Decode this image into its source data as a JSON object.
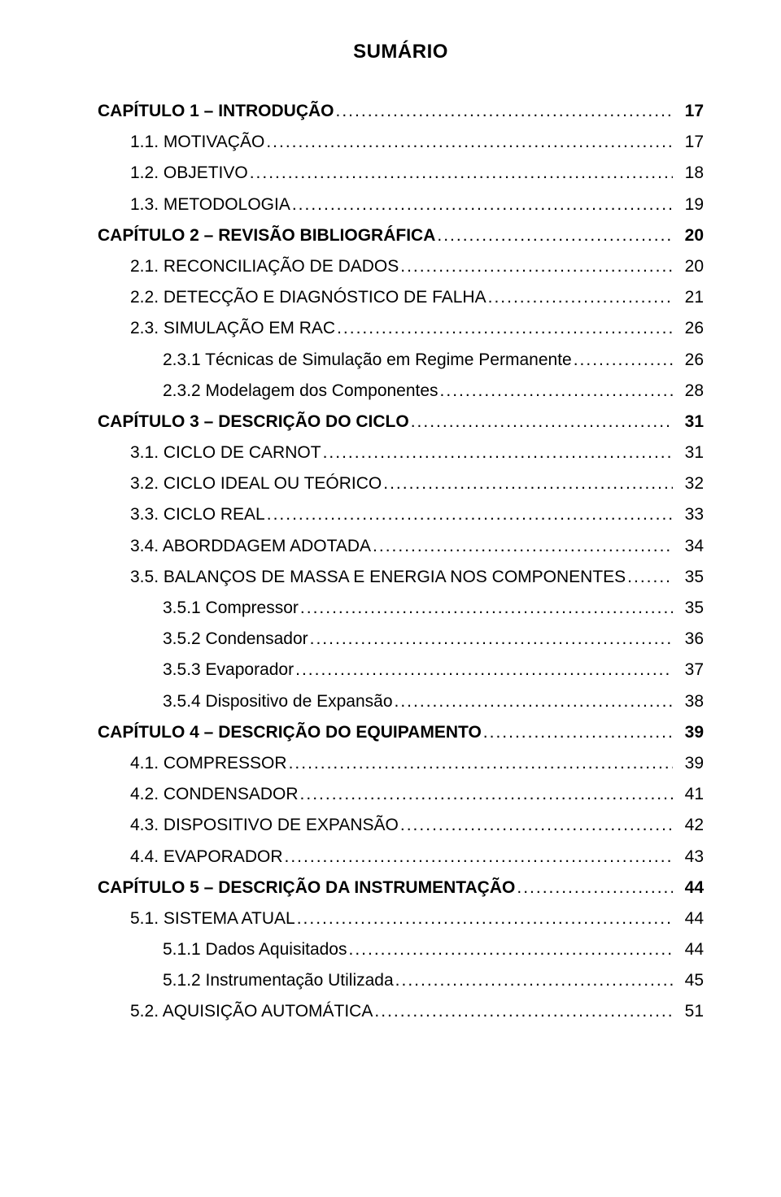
{
  "title": "SUMÁRIO",
  "font": {
    "family": "Arial",
    "title_size": 24,
    "row_size": 21
  },
  "colors": {
    "text": "#000000",
    "background": "#ffffff"
  },
  "entries": [
    {
      "label": "CAPÍTULO 1 – INTRODUÇÃO",
      "page": "17",
      "level": 0,
      "bold": true
    },
    {
      "label": "1.1. MOTIVAÇÃO",
      "page": "17",
      "level": 1,
      "bold": false
    },
    {
      "label": "1.2. OBJETIVO",
      "page": "18",
      "level": 1,
      "bold": false
    },
    {
      "label": "1.3. METODOLOGIA",
      "page": "19",
      "level": 1,
      "bold": false
    },
    {
      "label": "CAPÍTULO 2 – REVISÃO BIBLIOGRÁFICA",
      "page": "20",
      "level": 0,
      "bold": true
    },
    {
      "label": "2.1. RECONCILIAÇÃO DE DADOS",
      "page": "20",
      "level": 1,
      "bold": false
    },
    {
      "label": "2.2. DETECÇÃO E DIAGNÓSTICO DE FALHA",
      "page": "21",
      "level": 1,
      "bold": false
    },
    {
      "label": "2.3. SIMULAÇÃO EM RAC",
      "page": "26",
      "level": 1,
      "bold": false
    },
    {
      "label": "2.3.1  Técnicas de Simulação em Regime Permanente",
      "page": "26",
      "level": 2,
      "bold": false
    },
    {
      "label": "2.3.2  Modelagem dos Componentes",
      "page": "28",
      "level": 2,
      "bold": false
    },
    {
      "label": "CAPÍTULO 3 – DESCRIÇÃO DO CICLO",
      "page": "31",
      "level": 0,
      "bold": true
    },
    {
      "label": "3.1. CICLO DE CARNOT",
      "page": "31",
      "level": 1,
      "bold": false
    },
    {
      "label": "3.2. CICLO IDEAL OU TEÓRICO",
      "page": "32",
      "level": 1,
      "bold": false
    },
    {
      "label": "3.3. CICLO REAL",
      "page": "33",
      "level": 1,
      "bold": false
    },
    {
      "label": "3.4. ABORDDAGEM ADOTADA",
      "page": "34",
      "level": 1,
      "bold": false
    },
    {
      "label": "3.5. BALANÇOS DE MASSA E ENERGIA NOS COMPONENTES",
      "page": "35",
      "level": 1,
      "bold": false
    },
    {
      "label": "3.5.1  Compressor",
      "page": "35",
      "level": 2,
      "bold": false
    },
    {
      "label": "3.5.2  Condensador",
      "page": "36",
      "level": 2,
      "bold": false
    },
    {
      "label": "3.5.3  Evaporador",
      "page": "37",
      "level": 2,
      "bold": false
    },
    {
      "label": "3.5.4  Dispositivo de Expansão",
      "page": "38",
      "level": 2,
      "bold": false
    },
    {
      "label": "CAPÍTULO 4 – DESCRIÇÃO DO EQUIPAMENTO",
      "page": "39",
      "level": 0,
      "bold": true
    },
    {
      "label": "4.1. COMPRESSOR",
      "page": "39",
      "level": 1,
      "bold": false
    },
    {
      "label": "4.2. CONDENSADOR",
      "page": "41",
      "level": 1,
      "bold": false
    },
    {
      "label": "4.3. DISPOSITIVO DE EXPANSÃO",
      "page": "42",
      "level": 1,
      "bold": false
    },
    {
      "label": "4.4. EVAPORADOR",
      "page": "43",
      "level": 1,
      "bold": false
    },
    {
      "label": "CAPÍTULO 5 – DESCRIÇÃO DA INSTRUMENTAÇÃO",
      "page": "44",
      "level": 0,
      "bold": true
    },
    {
      "label": "5.1. SISTEMA ATUAL",
      "page": "44",
      "level": 1,
      "bold": false
    },
    {
      "label": "5.1.1  Dados Aquisitados",
      "page": "44",
      "level": 2,
      "bold": false
    },
    {
      "label": "5.1.2  Instrumentação Utilizada",
      "page": "45",
      "level": 2,
      "bold": false
    },
    {
      "label": "5.2. AQUISIÇÃO AUTOMÁTICA",
      "page": "51",
      "level": 1,
      "bold": false
    }
  ]
}
